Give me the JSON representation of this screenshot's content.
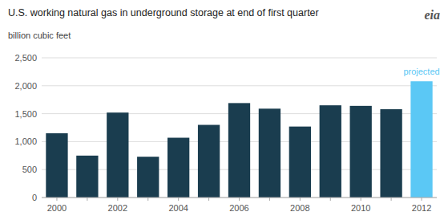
{
  "chart_data": {
    "type": "bar",
    "title": "U.S. working natural  gas in underground storage at end of first quarter",
    "y_label": "billion cubic feet",
    "categories": [
      "2000",
      null,
      "2002",
      null,
      "2004",
      null,
      "2006",
      null,
      "2008",
      null,
      "2010",
      null,
      "2012"
    ],
    "values": [
      1150,
      750,
      1520,
      730,
      1070,
      1300,
      1690,
      1590,
      1270,
      1650,
      1640,
      1580,
      2080
    ],
    "colors": [
      "#1a3d4f",
      "#1a3d4f",
      "#1a3d4f",
      "#1a3d4f",
      "#1a3d4f",
      "#1a3d4f",
      "#1a3d4f",
      "#1a3d4f",
      "#1a3d4f",
      "#1a3d4f",
      "#1a3d4f",
      "#1a3d4f",
      "#5bc8f5"
    ],
    "ylim": [
      0,
      2500
    ],
    "yticks": [
      0,
      500,
      {
        "value": 1000,
        "label": "1,000"
      },
      {
        "value": 1500,
        "label": "1,500"
      },
      {
        "value": 2000,
        "label": "2,000"
      },
      {
        "value": 2500,
        "label": "2,500"
      }
    ],
    "grid": true,
    "annotations": [
      {
        "text": "projected",
        "color": "#5bc8f5",
        "category": "2012"
      },
      {
        "text": "eia"
      }
    ]
  }
}
